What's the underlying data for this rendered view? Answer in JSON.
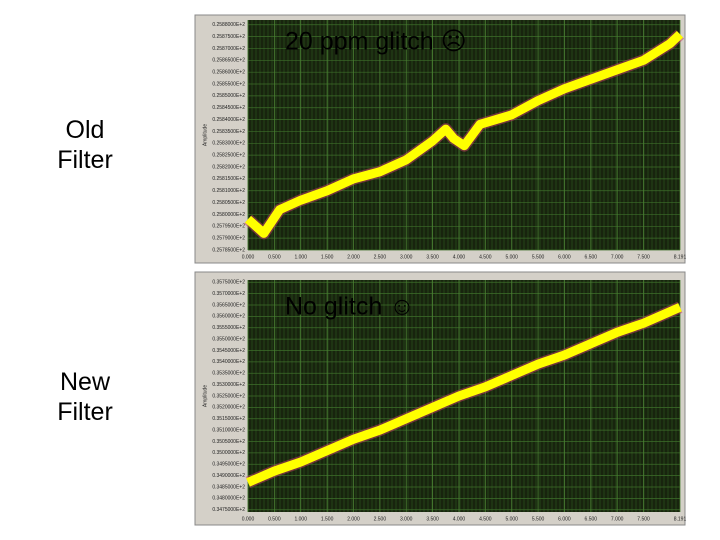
{
  "chart_data": [
    {
      "type": "line",
      "side_label": "Old Filter",
      "annotation": "20 ppm glitch ☹",
      "ylabel": "Amplitude",
      "x": [
        0,
        0.3,
        0.6,
        1,
        1.5,
        2,
        2.5,
        3,
        3.5,
        3.75,
        3.9,
        4.1,
        4.4,
        5,
        5.5,
        6,
        6.5,
        7,
        7.5,
        8,
        8.191
      ],
      "series": [
        {
          "color": "#ffff00",
          "values": [
            25.798,
            25.792,
            25.802,
            25.806,
            25.81,
            25.815,
            25.818,
            25.823,
            25.831,
            25.836,
            25.832,
            25.829,
            25.838,
            25.842,
            25.848,
            25.853,
            25.857,
            25.861,
            25.865,
            25.872,
            25.876
          ]
        }
      ],
      "xlim": [
        0,
        8.191
      ],
      "ylim": [
        25.785,
        25.882
      ],
      "xticks": [
        {
          "value": 0,
          "label": "0.000"
        },
        {
          "value": 0.5,
          "label": "0.500"
        },
        {
          "value": 1,
          "label": "1.000"
        },
        {
          "value": 1.5,
          "label": "1.500"
        },
        {
          "value": 2,
          "label": "2.000"
        },
        {
          "value": 2.5,
          "label": "2.500"
        },
        {
          "value": 3,
          "label": "3.000"
        },
        {
          "value": 3.5,
          "label": "3.500"
        },
        {
          "value": 4,
          "label": "4.000"
        },
        {
          "value": 4.5,
          "label": "4.500"
        },
        {
          "value": 5,
          "label": "5.000"
        },
        {
          "value": 5.5,
          "label": "5.500"
        },
        {
          "value": 6,
          "label": "6.000"
        },
        {
          "value": 6.5,
          "label": "6.500"
        },
        {
          "value": 7,
          "label": "7.000"
        },
        {
          "value": 7.5,
          "label": "7.500"
        },
        {
          "value": 8.191,
          "label": "8.191"
        }
      ],
      "yticks": [
        {
          "value": 25.88,
          "label": "0.2588000E+2"
        },
        {
          "value": 25.875,
          "label": "0.2587500E+2"
        },
        {
          "value": 25.87,
          "label": "0.2587000E+2"
        },
        {
          "value": 25.865,
          "label": "0.2586500E+2"
        },
        {
          "value": 25.86,
          "label": "0.2586000E+2"
        },
        {
          "value": 25.855,
          "label": "0.2585500E+2"
        },
        {
          "value": 25.85,
          "label": "0.2585000E+2"
        },
        {
          "value": 25.845,
          "label": "0.2584500E+2"
        },
        {
          "value": 25.84,
          "label": "0.2584000E+2"
        },
        {
          "value": 25.835,
          "label": "0.2583500E+2"
        },
        {
          "value": 25.83,
          "label": "0.2583000E+2"
        },
        {
          "value": 25.825,
          "label": "0.2582500E+2"
        },
        {
          "value": 25.82,
          "label": "0.2582000E+2"
        },
        {
          "value": 25.815,
          "label": "0.2581500E+2"
        },
        {
          "value": 25.81,
          "label": "0.2581000E+2"
        },
        {
          "value": 25.805,
          "label": "0.2580500E+2"
        },
        {
          "value": 25.8,
          "label": "0.2580000E+2"
        },
        {
          "value": 25.795,
          "label": "0.2579500E+2"
        },
        {
          "value": 25.79,
          "label": "0.2579000E+2"
        },
        {
          "value": 25.785,
          "label": "0.2578500E+2"
        }
      ],
      "grid": true
    },
    {
      "type": "line",
      "side_label": "New Filter",
      "annotation": "No glitch ☺",
      "ylabel": "Amplitude",
      "x": [
        0,
        0.5,
        1,
        1.5,
        2,
        2.5,
        3,
        3.5,
        4,
        4.5,
        5,
        5.5,
        6,
        6.5,
        7,
        7.5,
        8.191
      ],
      "series": [
        {
          "color": "#ffff00",
          "values": [
            34.87,
            34.92,
            34.96,
            35.01,
            35.06,
            35.1,
            35.15,
            35.2,
            35.25,
            35.29,
            35.34,
            35.39,
            35.43,
            35.48,
            35.53,
            35.57,
            35.64
          ]
        }
      ],
      "xlim": [
        0,
        8.191
      ],
      "ylim": [
        34.74,
        35.76
      ],
      "xticks": [
        {
          "value": 0,
          "label": "0.000"
        },
        {
          "value": 0.5,
          "label": "0.500"
        },
        {
          "value": 1,
          "label": "1.000"
        },
        {
          "value": 1.5,
          "label": "1.500"
        },
        {
          "value": 2,
          "label": "2.000"
        },
        {
          "value": 2.5,
          "label": "2.500"
        },
        {
          "value": 3,
          "label": "3.000"
        },
        {
          "value": 3.5,
          "label": "3.500"
        },
        {
          "value": 4,
          "label": "4.000"
        },
        {
          "value": 4.5,
          "label": "4.500"
        },
        {
          "value": 5,
          "label": "5.000"
        },
        {
          "value": 5.5,
          "label": "5.500"
        },
        {
          "value": 6,
          "label": "6.000"
        },
        {
          "value": 6.5,
          "label": "6.500"
        },
        {
          "value": 7,
          "label": "7.000"
        },
        {
          "value": 7.5,
          "label": "7.500"
        },
        {
          "value": 8.191,
          "label": "8.191"
        }
      ],
      "yticks": [
        {
          "value": 35.75,
          "label": "0.3575000E+2"
        },
        {
          "value": 35.7,
          "label": "0.3570000E+2"
        },
        {
          "value": 35.65,
          "label": "0.3565000E+2"
        },
        {
          "value": 35.6,
          "label": "0.3560000E+2"
        },
        {
          "value": 35.55,
          "label": "0.3555000E+2"
        },
        {
          "value": 35.5,
          "label": "0.3550000E+2"
        },
        {
          "value": 35.45,
          "label": "0.3545000E+2"
        },
        {
          "value": 35.4,
          "label": "0.3540000E+2"
        },
        {
          "value": 35.35,
          "label": "0.3535000E+2"
        },
        {
          "value": 35.3,
          "label": "0.3530000E+2"
        },
        {
          "value": 35.25,
          "label": "0.3525000E+2"
        },
        {
          "value": 35.2,
          "label": "0.3520000E+2"
        },
        {
          "value": 35.15,
          "label": "0.3515000E+2"
        },
        {
          "value": 35.1,
          "label": "0.3510000E+2"
        },
        {
          "value": 35.05,
          "label": "0.3505000E+2"
        },
        {
          "value": 35,
          "label": "0.3500000E+2"
        },
        {
          "value": 34.95,
          "label": "0.3495000E+2"
        },
        {
          "value": 34.9,
          "label": "0.3490000E+2"
        },
        {
          "value": 34.85,
          "label": "0.3485000E+2"
        },
        {
          "value": 34.8,
          "label": "0.3480000E+2"
        },
        {
          "value": 34.75,
          "label": "0.3475000E+2"
        }
      ],
      "grid": true
    }
  ]
}
